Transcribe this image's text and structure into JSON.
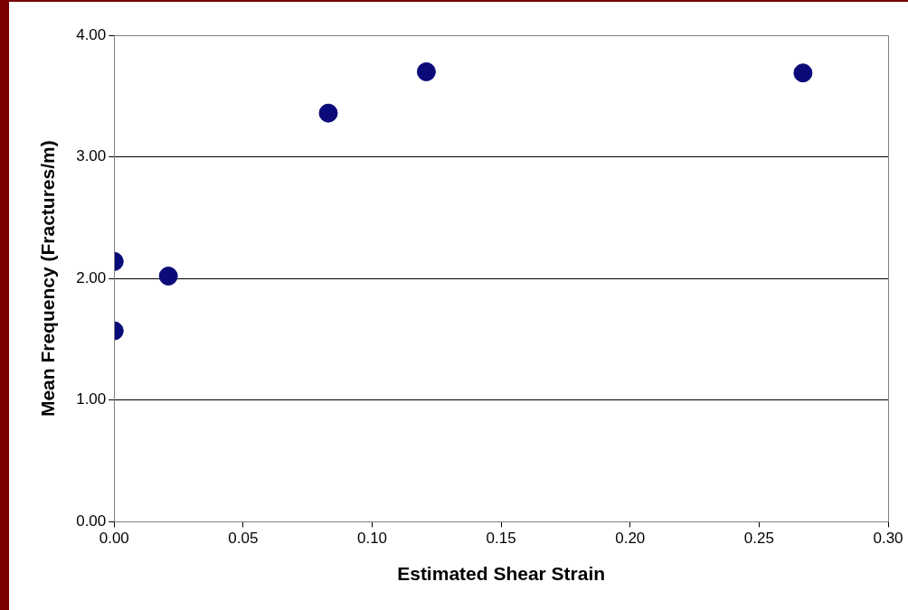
{
  "chart_data": {
    "type": "scatter",
    "xlabel": "Estimated Shear Strain",
    "ylabel": "Mean Frequency (Fractures/m)",
    "x": [
      0,
      0,
      0.021,
      0.083,
      0.121,
      0.267
    ],
    "series": [
      {
        "color": "#0a0a78",
        "values": [
          2.14,
          1.57,
          2.02,
          3.36,
          3.7,
          3.69
        ]
      }
    ],
    "xlim": [
      0,
      0.3
    ],
    "xticks": [
      {
        "value": 0,
        "label": "0.00"
      },
      {
        "value": 0.05,
        "label": "0.05"
      },
      {
        "value": 0.1,
        "label": "0.10"
      },
      {
        "value": 0.15,
        "label": "0.15"
      },
      {
        "value": 0.2,
        "label": "0.20"
      },
      {
        "value": 0.25,
        "label": "0.25"
      },
      {
        "value": 0.3,
        "label": "0.30"
      }
    ],
    "ylim": [
      0,
      4
    ],
    "yticks": [
      {
        "value": 0,
        "label": "0.00"
      },
      {
        "value": 1,
        "label": "1.00"
      },
      {
        "value": 2,
        "label": "2.00"
      },
      {
        "value": 3,
        "label": "3.00"
      },
      {
        "value": 4,
        "label": "4.00"
      }
    ],
    "grid": "y",
    "legend": false,
    "marker": "circle"
  }
}
